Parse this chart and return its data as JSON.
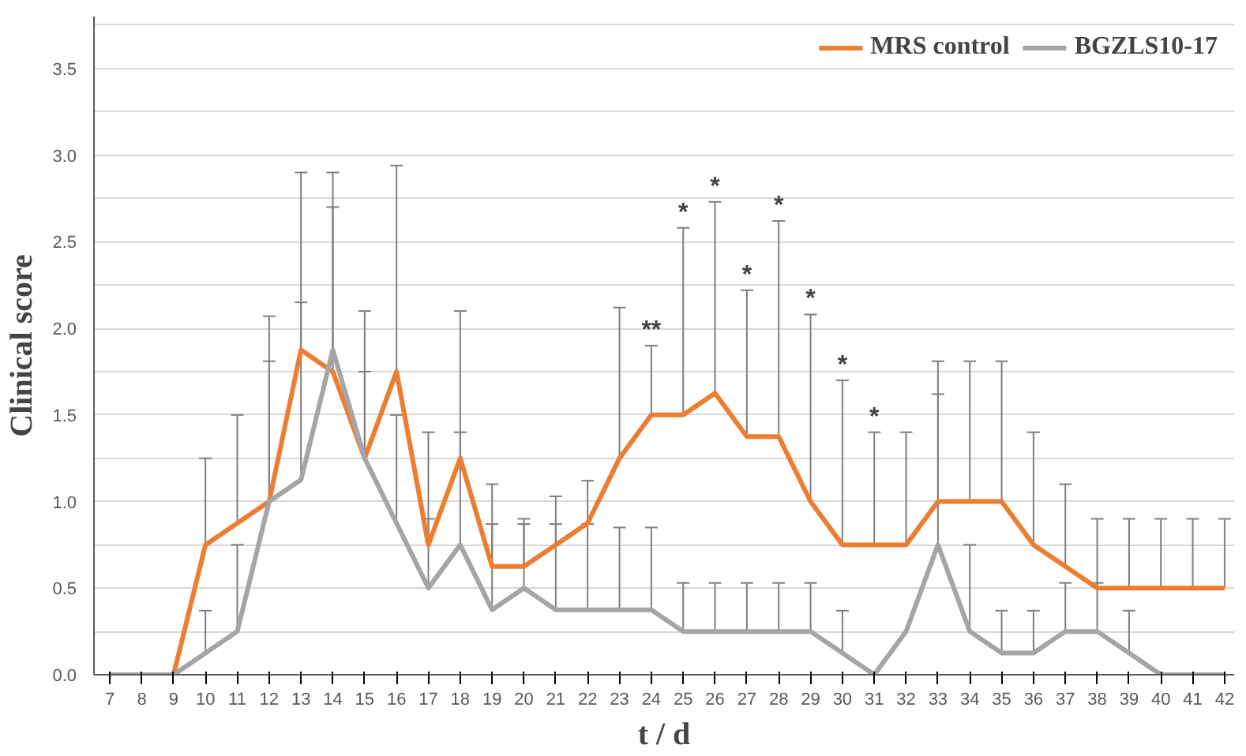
{
  "chart_data": {
    "type": "line",
    "xlabel": "t / d",
    "ylabel": "Clinical score",
    "x": [
      7,
      8,
      9,
      10,
      11,
      12,
      13,
      14,
      15,
      16,
      17,
      18,
      19,
      20,
      21,
      22,
      23,
      24,
      25,
      26,
      27,
      28,
      29,
      30,
      31,
      32,
      33,
      34,
      35,
      36,
      37,
      38,
      39,
      40,
      41,
      42
    ],
    "series": [
      {
        "name": "MRS control",
        "color": "#ed7d31",
        "values": [
          0,
          0,
          0,
          0.75,
          0.875,
          1.0,
          1.875,
          1.75,
          1.25,
          1.75,
          0.75,
          1.25,
          0.625,
          0.625,
          0.75,
          0.875,
          1.25,
          1.5,
          1.5,
          1.625,
          1.375,
          1.375,
          1.0,
          0.75,
          0.75,
          0.75,
          1.0,
          1.0,
          1.0,
          0.75,
          0.625,
          0.5,
          0.5,
          0.5,
          0.5,
          0.5
        ],
        "errors": [
          null,
          null,
          null,
          [
            0.75,
            1.25
          ],
          [
            0.875,
            1.5
          ],
          [
            1.0,
            2.07
          ],
          [
            1.875,
            2.9
          ],
          [
            1.75,
            2.9
          ],
          [
            1.25,
            2.1
          ],
          [
            1.75,
            2.94
          ],
          [
            0.75,
            1.4
          ],
          [
            1.25,
            2.1
          ],
          [
            0.625,
            1.1
          ],
          [
            0.625,
            0.9
          ],
          [
            0.75,
            1.03
          ],
          [
            0.875,
            1.12
          ],
          [
            1.25,
            2.12
          ],
          [
            1.5,
            1.9
          ],
          [
            1.5,
            2.58
          ],
          [
            1.625,
            2.73
          ],
          [
            1.375,
            2.22
          ],
          [
            1.375,
            2.62
          ],
          [
            1.0,
            2.08
          ],
          [
            0.75,
            1.7
          ],
          [
            0.75,
            1.4
          ],
          [
            0.75,
            1.4
          ],
          [
            1.0,
            1.81
          ],
          [
            1.0,
            1.81
          ],
          [
            1.0,
            1.81
          ],
          [
            0.75,
            1.4
          ],
          [
            0.625,
            1.1
          ],
          [
            0.5,
            0.9
          ],
          [
            0.5,
            0.9
          ],
          [
            0.5,
            0.9
          ],
          [
            0.5,
            0.9
          ],
          [
            0.5,
            0.9
          ]
        ]
      },
      {
        "name": "BGZLS10-17",
        "color": "#a5a5a5",
        "values": [
          0,
          0,
          0,
          0.125,
          0.25,
          1.0,
          1.125,
          1.875,
          1.25,
          0.875,
          0.5,
          0.75,
          0.375,
          0.5,
          0.375,
          0.375,
          0.375,
          0.375,
          0.25,
          0.25,
          0.25,
          0.25,
          0.25,
          0.125,
          0,
          0.25,
          0.75,
          0.25,
          0.125,
          0.125,
          0.25,
          0.25,
          0.125,
          0,
          0,
          0
        ],
        "errors": [
          null,
          null,
          null,
          [
            0.125,
            0.37
          ],
          [
            0.25,
            0.75
          ],
          [
            1.0,
            1.81
          ],
          [
            1.125,
            2.15
          ],
          [
            1.875,
            2.7
          ],
          [
            1.25,
            1.75
          ],
          [
            0.875,
            1.5
          ],
          [
            0.5,
            0.9
          ],
          [
            0.75,
            1.4
          ],
          [
            0.375,
            0.87
          ],
          [
            0.5,
            0.87
          ],
          [
            0.375,
            0.87
          ],
          [
            0.375,
            0.87
          ],
          [
            0.375,
            0.85
          ],
          [
            0.375,
            0.85
          ],
          [
            0.25,
            0.53
          ],
          [
            0.25,
            0.53
          ],
          [
            0.25,
            0.53
          ],
          [
            0.25,
            0.53
          ],
          [
            0.25,
            0.53
          ],
          [
            0.125,
            0.37
          ],
          null,
          null,
          [
            0.75,
            1.62
          ],
          [
            0.25,
            0.75
          ],
          [
            0.125,
            0.37
          ],
          [
            0.125,
            0.37
          ],
          [
            0.25,
            0.53
          ],
          [
            0.25,
            0.53
          ],
          [
            0.125,
            0.37
          ],
          null,
          null,
          null
        ]
      }
    ],
    "xlim": [
      6.5,
      42.3
    ],
    "xticks": [
      7,
      8,
      9,
      10,
      11,
      12,
      13,
      14,
      15,
      16,
      17,
      18,
      19,
      20,
      21,
      22,
      23,
      24,
      25,
      26,
      27,
      28,
      29,
      30,
      31,
      32,
      33,
      34,
      35,
      36,
      37,
      38,
      39,
      40,
      41,
      42
    ],
    "ylim": [
      0,
      3.8
    ],
    "yticks": [
      {
        "value": 0,
        "label": "0.0"
      },
      {
        "value": 0.25,
        "label": null
      },
      {
        "value": 0.5,
        "label": "0.5"
      },
      {
        "value": 0.75,
        "label": null
      },
      {
        "value": 1,
        "label": "1.0"
      },
      {
        "value": 1.25,
        "label": null
      },
      {
        "value": 1.5,
        "label": "1.5"
      },
      {
        "value": 1.75,
        "label": null
      },
      {
        "value": 2,
        "label": "2.0"
      },
      {
        "value": 2.25,
        "label": null
      },
      {
        "value": 2.5,
        "label": "2.5"
      },
      {
        "value": 2.75,
        "label": null
      },
      {
        "value": 3,
        "label": "3.0"
      },
      {
        "value": 3.25,
        "label": null
      },
      {
        "value": 3.5,
        "label": "3.5"
      },
      {
        "value": 3.75,
        "label": null
      }
    ],
    "annotations": [
      {
        "text": "**",
        "x": 24,
        "y": 1.9
      },
      {
        "text": "*",
        "x": 25,
        "y": 2.58
      },
      {
        "text": "*",
        "x": 26,
        "y": 2.73
      },
      {
        "text": "*",
        "x": 27,
        "y": 2.22
      },
      {
        "text": "*",
        "x": 28,
        "y": 2.62
      },
      {
        "text": "*",
        "x": 29,
        "y": 2.08
      },
      {
        "text": "*",
        "x": 30,
        "y": 1.7
      },
      {
        "text": "*",
        "x": 31,
        "y": 1.4
      }
    ],
    "grid": "y",
    "legend": "top right",
    "marker": "none",
    "line_style": "solid"
  }
}
